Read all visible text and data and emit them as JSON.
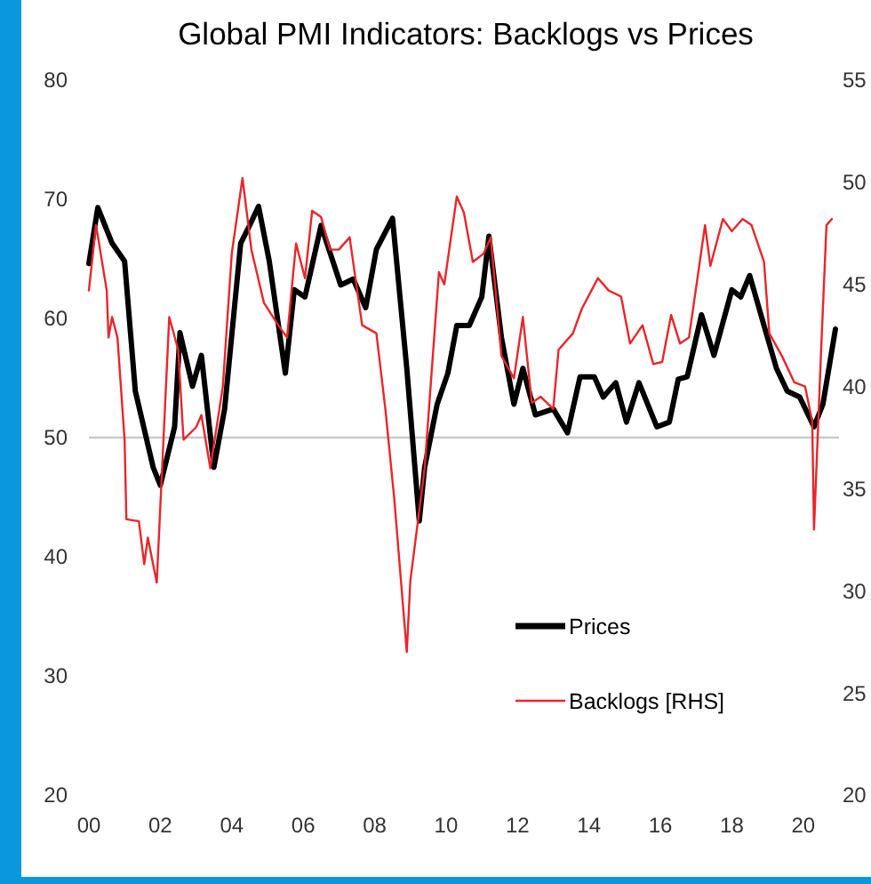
{
  "chart_data": {
    "type": "line",
    "title": "Global PMI Indicators: Backlogs vs Prices",
    "xlim": [
      2000,
      2021
    ],
    "xticks": [
      {
        "value": 2000,
        "label": "00"
      },
      {
        "value": 2002,
        "label": "02"
      },
      {
        "value": 2004,
        "label": "04"
      },
      {
        "value": 2006,
        "label": "06"
      },
      {
        "value": 2008,
        "label": "08"
      },
      {
        "value": 2010,
        "label": "10"
      },
      {
        "value": 2012,
        "label": "12"
      },
      {
        "value": 2014,
        "label": "14"
      },
      {
        "value": 2016,
        "label": "16"
      },
      {
        "value": 2018,
        "label": "18"
      },
      {
        "value": 2020,
        "label": "20"
      }
    ],
    "ylim": [
      20,
      80
    ],
    "yticks": [
      20,
      30,
      40,
      50,
      60,
      70,
      80
    ],
    "y2lim": [
      20,
      55
    ],
    "y2ticks": [
      20,
      25,
      30,
      35,
      40,
      45,
      50,
      55
    ],
    "ref_lines": [
      {
        "axis": "y",
        "value": 50,
        "color": "#c8c8c8"
      }
    ],
    "grid": false,
    "legend": "bottom",
    "series": [
      {
        "name": "Prices",
        "color": "#000000",
        "x": [
          2000.0,
          2000.25,
          2000.65,
          2001.0,
          2001.3,
          2001.8,
          2002.0,
          2002.4,
          2002.55,
          2002.9,
          2003.15,
          2003.5,
          2003.8,
          2004.25,
          2004.5,
          2004.75,
          2005.05,
          2005.5,
          2005.75,
          2006.05,
          2006.5,
          2007.05,
          2007.4,
          2007.75,
          2008.05,
          2008.5,
          2008.9,
          2009.25,
          2009.4,
          2009.75,
          2010.05,
          2010.3,
          2010.65,
          2011.0,
          2011.2,
          2011.55,
          2011.9,
          2012.15,
          2012.5,
          2013.0,
          2013.4,
          2013.75,
          2014.15,
          2014.4,
          2014.75,
          2015.05,
          2015.4,
          2015.9,
          2016.25,
          2016.5,
          2016.75,
          2017.15,
          2017.5,
          2018.0,
          2018.25,
          2018.5,
          2018.9,
          2019.25,
          2019.55,
          2019.9,
          2020.3,
          2020.55,
          2020.9
        ],
        "values": [
          64.6,
          69.3,
          66.3,
          64.8,
          53.9,
          47.5,
          46.0,
          50.9,
          58.8,
          54.3,
          56.9,
          47.5,
          52.4,
          66.3,
          67.8,
          69.4,
          64.8,
          55.4,
          62.4,
          61.8,
          67.8,
          62.8,
          63.3,
          60.9,
          65.8,
          68.4,
          55.8,
          43.0,
          47.5,
          52.8,
          55.4,
          59.4,
          59.4,
          61.8,
          66.9,
          58.4,
          52.8,
          55.8,
          51.9,
          52.4,
          50.4,
          55.1,
          55.1,
          53.4,
          54.6,
          51.3,
          54.6,
          50.9,
          51.3,
          54.9,
          55.1,
          60.3,
          56.9,
          62.4,
          61.8,
          63.6,
          59.4,
          55.8,
          53.9,
          53.4,
          50.9,
          52.8,
          59.1
        ]
      },
      {
        "name": "Backlogs [RHS]",
        "color": "#e8262b",
        "axis": "y2",
        "x": [
          2000.0,
          2000.2,
          2000.5,
          2000.55,
          2000.65,
          2000.8,
          2001.0,
          2001.05,
          2001.4,
          2001.55,
          2001.65,
          2001.9,
          2002.25,
          2002.5,
          2002.65,
          2003.0,
          2003.15,
          2003.4,
          2003.75,
          2004.0,
          2004.3,
          2004.55,
          2004.9,
          2005.3,
          2005.55,
          2005.8,
          2006.05,
          2006.25,
          2006.5,
          2006.75,
          2007.0,
          2007.3,
          2007.65,
          2008.05,
          2008.3,
          2008.55,
          2008.9,
          2009.0,
          2009.4,
          2009.8,
          2009.95,
          2010.3,
          2010.5,
          2010.75,
          2011.05,
          2011.25,
          2011.55,
          2011.9,
          2012.15,
          2012.4,
          2012.65,
          2013.0,
          2013.15,
          2013.55,
          2013.8,
          2014.25,
          2014.55,
          2014.9,
          2015.15,
          2015.5,
          2015.8,
          2016.05,
          2016.3,
          2016.55,
          2016.8,
          2017.25,
          2017.4,
          2017.75,
          2018.0,
          2018.3,
          2018.55,
          2018.9,
          2019.05,
          2019.4,
          2019.75,
          2020.05,
          2020.25,
          2020.3,
          2020.5,
          2020.65,
          2020.8
        ],
        "values": [
          44.7,
          47.9,
          44.7,
          42.4,
          43.4,
          42.4,
          37.4,
          33.5,
          33.4,
          31.3,
          32.6,
          30.4,
          43.4,
          41.8,
          37.4,
          38.0,
          38.6,
          36.0,
          40.0,
          46.5,
          50.2,
          46.7,
          44.1,
          43.0,
          42.4,
          47.0,
          45.3,
          48.6,
          48.3,
          46.7,
          46.7,
          47.3,
          43.0,
          42.6,
          38.9,
          34.5,
          27.0,
          30.5,
          36.0,
          45.6,
          45.0,
          49.3,
          48.5,
          46.1,
          46.5,
          47.3,
          41.5,
          40.4,
          43.4,
          39.2,
          39.5,
          38.9,
          41.8,
          42.6,
          43.8,
          45.3,
          44.7,
          44.4,
          42.1,
          43.0,
          41.1,
          41.2,
          43.5,
          42.1,
          42.4,
          47.9,
          45.9,
          48.2,
          47.6,
          48.2,
          47.9,
          46.1,
          42.6,
          41.5,
          40.2,
          40.0,
          38.3,
          33.0,
          41.8,
          47.9,
          48.2
        ]
      }
    ]
  }
}
